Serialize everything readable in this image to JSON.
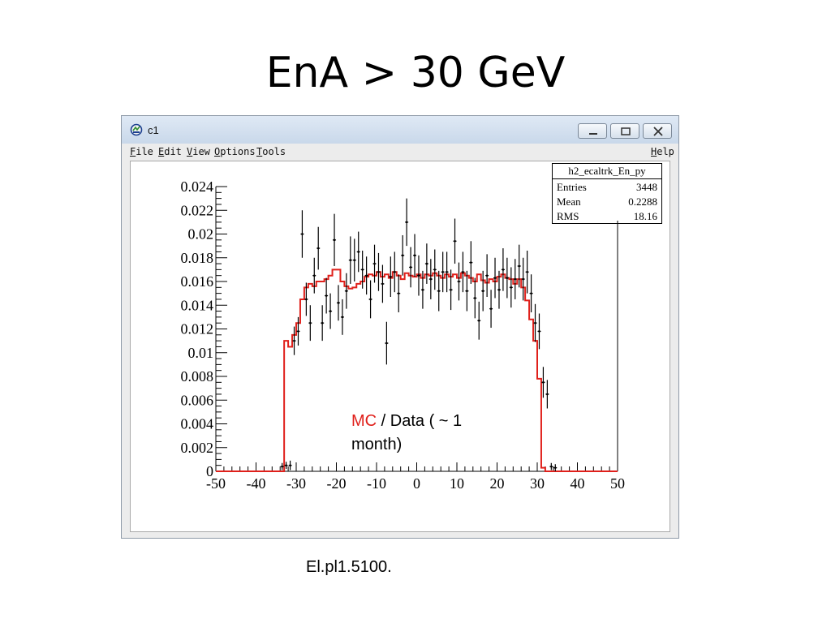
{
  "slide": {
    "title": "EnA  > 30 GeV",
    "footer": "El.pl1.5100."
  },
  "window": {
    "title": "c1",
    "app_icon": "root-canvas-icon",
    "controls": [
      "minimize-icon",
      "maximize-icon",
      "close-icon"
    ],
    "menu": {
      "file": {
        "key": "F",
        "rest": "ile"
      },
      "edit": {
        "key": "E",
        "rest": "dit"
      },
      "view": {
        "key": "V",
        "rest": "iew"
      },
      "options": {
        "key": "O",
        "rest": "ptions"
      },
      "tools": {
        "key": "T",
        "rest": "ools"
      },
      "help": {
        "key": "H",
        "rest": "elp"
      }
    }
  },
  "stats_box": {
    "title": "h2_ecaltrk_En_py",
    "rows": [
      {
        "label": "Entries",
        "value": "3448"
      },
      {
        "label": "Mean",
        "value": "0.2288"
      },
      {
        "label": "RMS",
        "value": "18.16"
      }
    ]
  },
  "annotation": {
    "mc": "MC",
    "rest": " / Data ( ~ 1 month)"
  },
  "colors": {
    "mc_line": "#e0201b",
    "data_points": "#000000"
  },
  "chart_data": {
    "type": "line",
    "xlim": [
      -50,
      50
    ],
    "ylim": [
      0,
      0.024
    ],
    "x_ticks": [
      -50,
      -40,
      -30,
      -20,
      -10,
      0,
      10,
      20,
      30,
      40,
      50
    ],
    "y_ticks": [
      0,
      0.002,
      0.004,
      0.006,
      0.008,
      0.01,
      0.012,
      0.014,
      0.016,
      0.018,
      0.02,
      0.022,
      0.024
    ],
    "y_tick_labels": [
      "0",
      "0.002",
      "0.004",
      "0.006",
      "0.008",
      "0.01",
      "0.012",
      "0.014",
      "0.016",
      "0.018",
      "0.02",
      "0.022",
      "0.024"
    ],
    "series": [
      {
        "name": "MC",
        "style": "step",
        "x": [
          -50,
          -33,
          -32,
          -31,
          -30,
          -29,
          -28,
          -27,
          -26,
          -25,
          -24,
          -23,
          -22,
          -21,
          -20,
          -19,
          -18,
          -17,
          -16,
          -15,
          -14,
          -13,
          -12,
          -11,
          -10,
          -9,
          -8,
          -7,
          -6,
          -5,
          -4,
          -3,
          -2,
          -1,
          0,
          1,
          2,
          3,
          4,
          5,
          6,
          7,
          8,
          9,
          10,
          11,
          12,
          13,
          14,
          15,
          16,
          17,
          18,
          19,
          20,
          21,
          22,
          23,
          24,
          25,
          26,
          27,
          28,
          29,
          30,
          31,
          32,
          33
        ],
        "y": [
          0.0,
          0.011,
          0.0105,
          0.0115,
          0.0125,
          0.0145,
          0.0155,
          0.0158,
          0.0156,
          0.016,
          0.016,
          0.0162,
          0.0165,
          0.017,
          0.017,
          0.016,
          0.0156,
          0.0154,
          0.0155,
          0.0158,
          0.016,
          0.0164,
          0.0166,
          0.0165,
          0.0168,
          0.0164,
          0.0166,
          0.0163,
          0.0168,
          0.0165,
          0.0162,
          0.0167,
          0.0165,
          0.0164,
          0.0166,
          0.0163,
          0.0166,
          0.0165,
          0.0167,
          0.0165,
          0.0163,
          0.0166,
          0.0164,
          0.0166,
          0.0163,
          0.0167,
          0.0165,
          0.0163,
          0.016,
          0.0166,
          0.0161,
          0.0159,
          0.0162,
          0.016,
          0.0164,
          0.0166,
          0.0163,
          0.0162,
          0.0158,
          0.0162,
          0.0155,
          0.0144,
          0.0128,
          0.011,
          0.0078,
          0.0003,
          0.0,
          0.0
        ]
      },
      {
        "name": "Data",
        "style": "errorbar",
        "points": [
          {
            "x": -33.5,
            "y": 0.0004,
            "e": 0.0003
          },
          {
            "x": -32.5,
            "y": 0.0005,
            "e": 0.0003
          },
          {
            "x": -31.5,
            "y": 0.0005,
            "e": 0.0004
          },
          {
            "x": -30.5,
            "y": 0.011,
            "e": 0.0012
          },
          {
            "x": -29.5,
            "y": 0.0118,
            "e": 0.0012
          },
          {
            "x": -28.5,
            "y": 0.02,
            "e": 0.002
          },
          {
            "x": -27.5,
            "y": 0.0145,
            "e": 0.0014
          },
          {
            "x": -26.5,
            "y": 0.0125,
            "e": 0.0015
          },
          {
            "x": -25.5,
            "y": 0.0165,
            "e": 0.0015
          },
          {
            "x": -24.5,
            "y": 0.0188,
            "e": 0.0018
          },
          {
            "x": -23.5,
            "y": 0.0125,
            "e": 0.0015
          },
          {
            "x": -22.5,
            "y": 0.0148,
            "e": 0.0015
          },
          {
            "x": -21.5,
            "y": 0.0135,
            "e": 0.0015
          },
          {
            "x": -20.5,
            "y": 0.0195,
            "e": 0.0022
          },
          {
            "x": -19.5,
            "y": 0.0142,
            "e": 0.0015
          },
          {
            "x": -18.5,
            "y": 0.013,
            "e": 0.0015
          },
          {
            "x": -17.5,
            "y": 0.0152,
            "e": 0.0015
          },
          {
            "x": -16.5,
            "y": 0.0178,
            "e": 0.002
          },
          {
            "x": -15.5,
            "y": 0.0178,
            "e": 0.0018
          },
          {
            "x": -14.5,
            "y": 0.0185,
            "e": 0.0017
          },
          {
            "x": -13.5,
            "y": 0.017,
            "e": 0.0016
          },
          {
            "x": -12.5,
            "y": 0.0165,
            "e": 0.0016
          },
          {
            "x": -11.5,
            "y": 0.0145,
            "e": 0.0016
          },
          {
            "x": -10.5,
            "y": 0.0175,
            "e": 0.0016
          },
          {
            "x": -9.5,
            "y": 0.0168,
            "e": 0.0016
          },
          {
            "x": -8.5,
            "y": 0.0158,
            "e": 0.0016
          },
          {
            "x": -7.5,
            "y": 0.0108,
            "e": 0.0018
          },
          {
            "x": -6.5,
            "y": 0.0164,
            "e": 0.0017
          },
          {
            "x": -5.5,
            "y": 0.0168,
            "e": 0.0017
          },
          {
            "x": -4.5,
            "y": 0.015,
            "e": 0.0016
          },
          {
            "x": -3.5,
            "y": 0.0182,
            "e": 0.0017
          },
          {
            "x": -2.5,
            "y": 0.021,
            "e": 0.002
          },
          {
            "x": -1.5,
            "y": 0.0172,
            "e": 0.0017
          },
          {
            "x": -0.5,
            "y": 0.0182,
            "e": 0.0018
          },
          {
            "x": 0.5,
            "y": 0.0165,
            "e": 0.0017
          },
          {
            "x": 1.5,
            "y": 0.0153,
            "e": 0.0016
          },
          {
            "x": 2.5,
            "y": 0.0175,
            "e": 0.0017
          },
          {
            "x": 3.5,
            "y": 0.0162,
            "e": 0.0017
          },
          {
            "x": 4.5,
            "y": 0.017,
            "e": 0.0017
          },
          {
            "x": 5.5,
            "y": 0.0152,
            "e": 0.0017
          },
          {
            "x": 6.5,
            "y": 0.0168,
            "e": 0.0017
          },
          {
            "x": 7.5,
            "y": 0.0168,
            "e": 0.0017
          },
          {
            "x": 8.5,
            "y": 0.0153,
            "e": 0.0017
          },
          {
            "x": 9.5,
            "y": 0.0194,
            "e": 0.0019
          },
          {
            "x": 10.5,
            "y": 0.016,
            "e": 0.0016
          },
          {
            "x": 11.5,
            "y": 0.0168,
            "e": 0.0017
          },
          {
            "x": 12.5,
            "y": 0.0152,
            "e": 0.0017
          },
          {
            "x": 13.5,
            "y": 0.0176,
            "e": 0.0018
          },
          {
            "x": 14.5,
            "y": 0.0146,
            "e": 0.0017
          },
          {
            "x": 15.5,
            "y": 0.0127,
            "e": 0.0016
          },
          {
            "x": 16.5,
            "y": 0.0152,
            "e": 0.0017
          },
          {
            "x": 17.5,
            "y": 0.0165,
            "e": 0.0018
          },
          {
            "x": 18.5,
            "y": 0.0137,
            "e": 0.0016
          },
          {
            "x": 19.5,
            "y": 0.0163,
            "e": 0.0017
          },
          {
            "x": 20.5,
            "y": 0.0153,
            "e": 0.0016
          },
          {
            "x": 21.5,
            "y": 0.017,
            "e": 0.0018
          },
          {
            "x": 22.5,
            "y": 0.0163,
            "e": 0.0017
          },
          {
            "x": 23.5,
            "y": 0.0155,
            "e": 0.0017
          },
          {
            "x": 24.5,
            "y": 0.0162,
            "e": 0.0017
          },
          {
            "x": 25.5,
            "y": 0.0173,
            "e": 0.0018
          },
          {
            "x": 26.5,
            "y": 0.0162,
            "e": 0.0018
          },
          {
            "x": 27.5,
            "y": 0.0168,
            "e": 0.0018
          },
          {
            "x": 28.5,
            "y": 0.015,
            "e": 0.0016
          },
          {
            "x": 29.5,
            "y": 0.0125,
            "e": 0.0016
          },
          {
            "x": 30.5,
            "y": 0.0118,
            "e": 0.0015
          },
          {
            "x": 31.5,
            "y": 0.0075,
            "e": 0.0013
          },
          {
            "x": 32.5,
            "y": 0.0065,
            "e": 0.0012
          },
          {
            "x": 33.5,
            "y": 0.0004,
            "e": 0.0003
          },
          {
            "x": 34.5,
            "y": 0.0003,
            "e": 0.0003
          }
        ]
      }
    ]
  }
}
